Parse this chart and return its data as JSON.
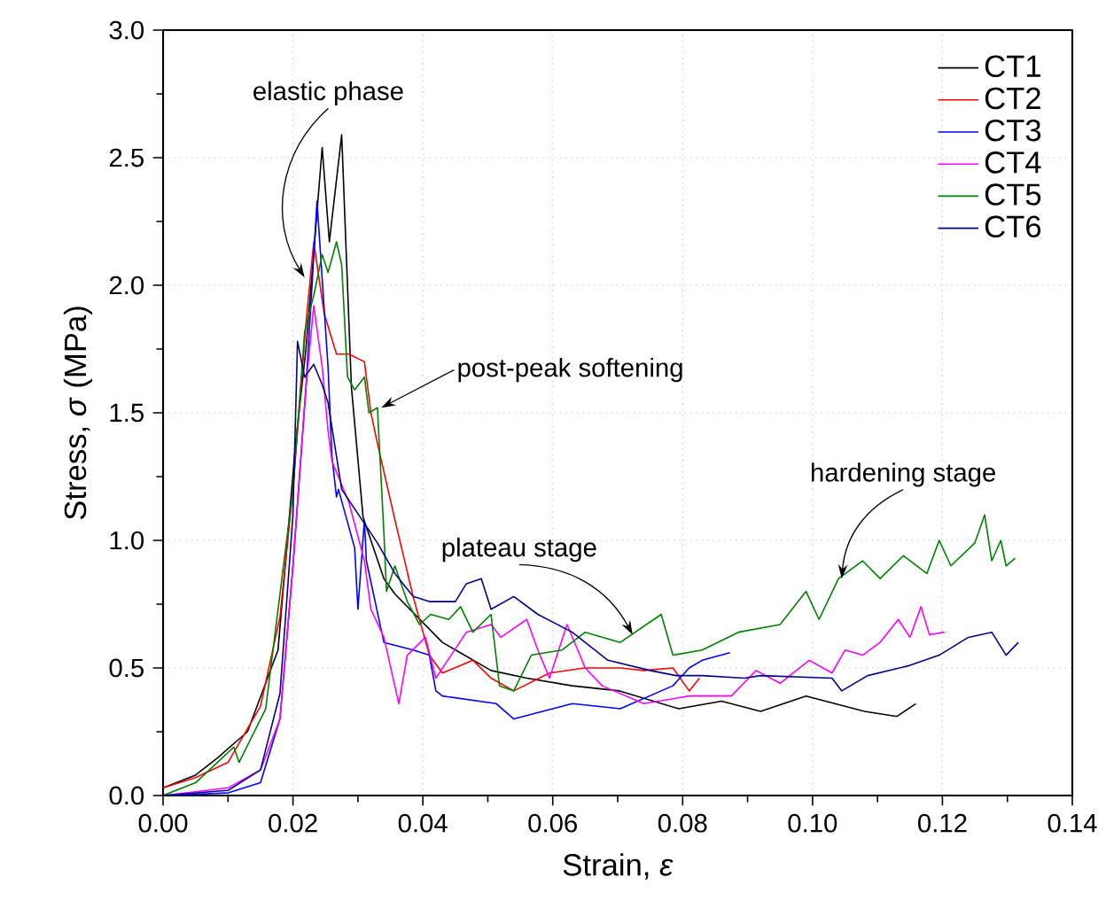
{
  "chart_data": {
    "type": "line",
    "xlabel": "Strain, *ε*",
    "ylabel": "Stress, *σ* (MPa)",
    "xlim": [
      0,
      0.14
    ],
    "ylim": [
      0,
      3.0
    ],
    "xticks": [
      {
        "value": 0,
        "label": "0.00"
      },
      {
        "value": 0.02,
        "label": "0.02"
      },
      {
        "value": 0.04,
        "label": "0.04"
      },
      {
        "value": 0.06,
        "label": "0.06"
      },
      {
        "value": 0.08,
        "label": "0.08"
      },
      {
        "value": 0.1,
        "label": "0.10"
      },
      {
        "value": 0.12,
        "label": "0.12"
      },
      {
        "value": 0.14,
        "label": "0.14"
      }
    ],
    "yticks": [
      {
        "value": 0,
        "label": "0.0"
      },
      {
        "value": 0.5,
        "label": "0.5"
      },
      {
        "value": 1,
        "label": "1.0"
      },
      {
        "value": 1.5,
        "label": "1.5"
      },
      {
        "value": 2,
        "label": "2.0"
      },
      {
        "value": 2.5,
        "label": "2.5"
      },
      {
        "value": 3,
        "label": "3.0"
      }
    ],
    "grid": true,
    "legend": "top right",
    "marker": "none",
    "line_style": "solid",
    "annotations": [
      {
        "text": "elastic phase",
        "x": 0.0218,
        "y": 2.03
      },
      {
        "text": "post-peak softening",
        "x": 0.0336,
        "y": 1.52
      },
      {
        "text": "plateau stage",
        "x": 0.0723,
        "y": 0.63
      },
      {
        "text": "hardening stage",
        "x": 0.1045,
        "y": 0.85
      }
    ],
    "series": [
      {
        "name": "CT1",
        "color": "#000000",
        "x": [
          0,
          0.005,
          0.0085,
          0.013,
          0.0177,
          0.0204,
          0.022,
          0.0245,
          0.0256,
          0.0275,
          0.029,
          0.0308,
          0.034,
          0.0357,
          0.043,
          0.0505,
          0.056,
          0.063,
          0.0703,
          0.0794,
          0.086,
          0.092,
          0.099,
          0.108,
          0.113,
          0.1159
        ],
        "values": [
          0.03,
          0.08,
          0.15,
          0.25,
          0.57,
          1.38,
          1.75,
          2.54,
          2.17,
          2.59,
          1.6,
          1.09,
          0.85,
          0.79,
          0.6,
          0.49,
          0.46,
          0.43,
          0.41,
          0.34,
          0.37,
          0.33,
          0.39,
          0.33,
          0.31,
          0.36
        ]
      },
      {
        "name": "CT2",
        "color": "#ff0000",
        "x": [
          0,
          0.005,
          0.01,
          0.015,
          0.018,
          0.02,
          0.022,
          0.0232,
          0.0248,
          0.0267,
          0.0286,
          0.031,
          0.032,
          0.033,
          0.0357,
          0.0385,
          0.041,
          0.043,
          0.0477,
          0.0505,
          0.054,
          0.0595,
          0.0649,
          0.0704,
          0.074,
          0.0785,
          0.081,
          0.0826
        ],
        "values": [
          0.03,
          0.07,
          0.13,
          0.35,
          0.7,
          1.2,
          1.85,
          2.17,
          1.89,
          1.73,
          1.73,
          1.7,
          1.5,
          1.38,
          1.08,
          0.78,
          0.55,
          0.48,
          0.53,
          0.46,
          0.41,
          0.48,
          0.5,
          0.5,
          0.49,
          0.5,
          0.41,
          0.46
        ]
      },
      {
        "name": "CT3",
        "color": "#0000ff",
        "x": [
          0,
          0.01,
          0.015,
          0.018,
          0.02,
          0.022,
          0.0237,
          0.0254,
          0.026,
          0.0267,
          0.027,
          0.0295,
          0.03,
          0.031,
          0.0313,
          0.034,
          0.0385,
          0.041,
          0.042,
          0.043,
          0.0513,
          0.054,
          0.063,
          0.0704,
          0.0785,
          0.081,
          0.083,
          0.0873
        ],
        "values": [
          0,
          0.01,
          0.05,
          0.3,
          0.9,
          1.6,
          2.33,
          1.68,
          1.33,
          1.17,
          1.2,
          0.97,
          0.73,
          1.08,
          0.92,
          0.6,
          0.57,
          0.55,
          0.41,
          0.39,
          0.36,
          0.3,
          0.36,
          0.34,
          0.43,
          0.5,
          0.53,
          0.56
        ]
      },
      {
        "name": "CT4",
        "color": "#ff00ff",
        "x": [
          0,
          0.01,
          0.015,
          0.018,
          0.02,
          0.022,
          0.0232,
          0.0245,
          0.0254,
          0.026,
          0.0286,
          0.031,
          0.032,
          0.034,
          0.0363,
          0.0376,
          0.0404,
          0.042,
          0.0467,
          0.0505,
          0.052,
          0.056,
          0.0577,
          0.0595,
          0.0622,
          0.065,
          0.0676,
          0.074,
          0.081,
          0.0875,
          0.0913,
          0.095,
          0.0995,
          0.103,
          0.105,
          0.1077,
          0.1104,
          0.1132,
          0.115,
          0.1167,
          0.118,
          0.1203
        ],
        "values": [
          0,
          0.03,
          0.1,
          0.3,
          0.9,
          1.6,
          1.92,
          1.68,
          1.43,
          1.31,
          1.15,
          0.92,
          0.73,
          0.62,
          0.36,
          0.55,
          0.62,
          0.46,
          0.64,
          0.67,
          0.62,
          0.69,
          0.57,
          0.46,
          0.67,
          0.5,
          0.43,
          0.36,
          0.39,
          0.39,
          0.49,
          0.44,
          0.53,
          0.48,
          0.57,
          0.55,
          0.6,
          0.69,
          0.62,
          0.74,
          0.63,
          0.64
        ]
      },
      {
        "name": "CT5",
        "color": "#008000",
        "x": [
          0,
          0.005,
          0.0109,
          0.0117,
          0.0158,
          0.02,
          0.0218,
          0.0232,
          0.0245,
          0.0254,
          0.0267,
          0.0275,
          0.0284,
          0.0295,
          0.031,
          0.0317,
          0.033,
          0.034,
          0.0344,
          0.0357,
          0.0376,
          0.0395,
          0.0412,
          0.044,
          0.0458,
          0.0477,
          0.0505,
          0.0518,
          0.054,
          0.0567,
          0.0614,
          0.065,
          0.0704,
          0.0767,
          0.0785,
          0.083,
          0.0886,
          0.095,
          0.099,
          0.101,
          0.104,
          0.1077,
          0.1104,
          0.114,
          0.1176,
          0.1195,
          0.1213,
          0.125,
          0.1265,
          0.1276,
          0.129,
          0.1298,
          0.1312
        ],
        "values": [
          0,
          0.05,
          0.19,
          0.13,
          0.34,
          1.2,
          1.82,
          1.96,
          2.12,
          2.05,
          2.17,
          2.08,
          1.64,
          1.59,
          1.64,
          1.5,
          1.52,
          1.03,
          0.8,
          0.9,
          0.76,
          0.67,
          0.71,
          0.69,
          0.74,
          0.64,
          0.71,
          0.43,
          0.41,
          0.55,
          0.57,
          0.64,
          0.6,
          0.71,
          0.55,
          0.57,
          0.64,
          0.67,
          0.8,
          0.69,
          0.85,
          0.92,
          0.85,
          0.94,
          0.87,
          1.0,
          0.9,
          0.99,
          1.1,
          0.92,
          1.0,
          0.9,
          0.93
        ]
      },
      {
        "name": "CT6",
        "color": "#00008b",
        "x": [
          0,
          0.01,
          0.015,
          0.018,
          0.02,
          0.0207,
          0.0218,
          0.0232,
          0.0245,
          0.0254,
          0.0275,
          0.033,
          0.0357,
          0.0385,
          0.041,
          0.045,
          0.0467,
          0.049,
          0.0505,
          0.054,
          0.0577,
          0.063,
          0.0685,
          0.075,
          0.079,
          0.083,
          0.0895,
          0.092,
          0.103,
          0.1045,
          0.1085,
          0.115,
          0.1195,
          0.124,
          0.1276,
          0.1298,
          0.1317
        ],
        "values": [
          0,
          0.02,
          0.1,
          0.4,
          1.1,
          1.78,
          1.64,
          1.69,
          1.61,
          1.54,
          1.2,
          0.99,
          0.87,
          0.78,
          0.76,
          0.76,
          0.83,
          0.85,
          0.73,
          0.78,
          0.71,
          0.64,
          0.53,
          0.49,
          0.47,
          0.47,
          0.46,
          0.47,
          0.46,
          0.41,
          0.47,
          0.51,
          0.55,
          0.62,
          0.64,
          0.55,
          0.6
        ]
      }
    ]
  }
}
